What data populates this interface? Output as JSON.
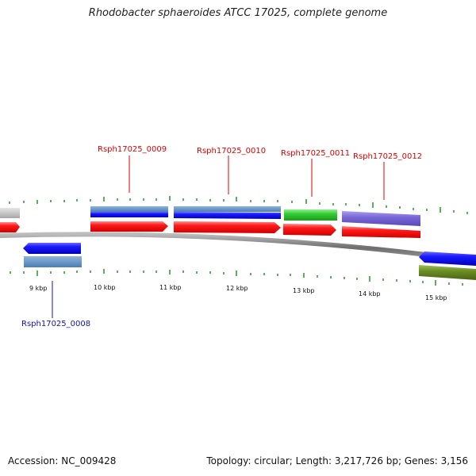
{
  "title": "Rhodobacter sphaeroides ATCC 17025, complete genome",
  "footer": {
    "accession": "Accession: NC_009428",
    "stats": "Topology: circular; Length: 3,217,726 bp; Genes: 3,156"
  },
  "kbp_labels": [
    "9 kbp",
    "10 kbp",
    "11 kbp",
    "12 kbp",
    "13 kbp",
    "14 kbp",
    "15 kbp"
  ],
  "gene_labels": [
    "Rsph17025_0008",
    "Rsph17025_0009",
    "Rsph17025_0010",
    "Rsph17025_0011",
    "Rsph17025_0012"
  ],
  "colors": {
    "forward_cds": "#ff1a1a",
    "reverse_cds": "#1a1aff",
    "steel_blue": "#5b8fc2",
    "green": "#33cc33",
    "purple": "#7b68d8",
    "olive": "#6b8e23",
    "gray_block": "#c8c8c8",
    "backbone": "#7a7a7a",
    "tick": "#1a8c1a",
    "forward_label": "#e00000",
    "reverse_label": "#1010c0"
  }
}
